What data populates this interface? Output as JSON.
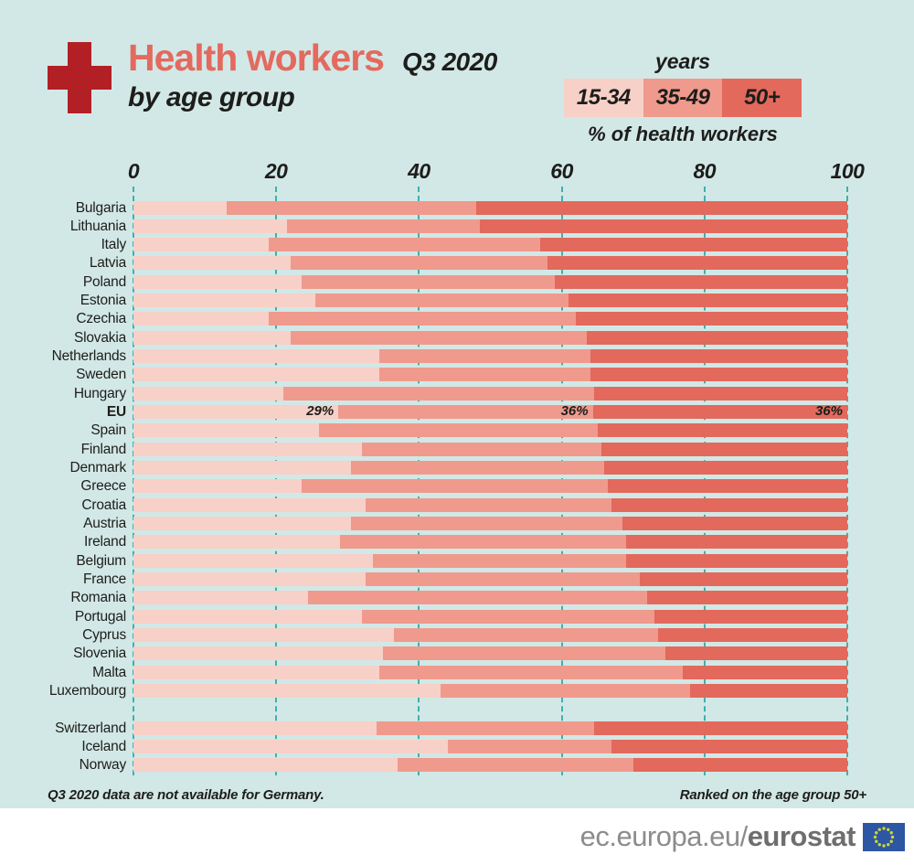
{
  "header": {
    "title": "Health workers",
    "period": "Q3 2020",
    "subtitle": "by age group"
  },
  "legend": {
    "title": "years",
    "unit_label": "% of health workers",
    "groups": [
      {
        "label": "15-34",
        "color": "#f7d0c8"
      },
      {
        "label": "35-49",
        "color": "#ef9a8d"
      },
      {
        "label": "50+",
        "color": "#e2695c"
      }
    ]
  },
  "axis": {
    "ticks": [
      "0",
      "20",
      "40",
      "60",
      "80",
      "100"
    ],
    "min": 0,
    "max": 100
  },
  "chart_data": {
    "type": "bar",
    "subtype": "horizontal-stacked",
    "series_names": [
      "15-34",
      "35-49",
      "50+"
    ],
    "unit": "% of health workers",
    "xlim": [
      0,
      100
    ],
    "grid": "vertical-dashed",
    "note": "stacked shares per country, ranked on age group 50+",
    "rows": [
      {
        "country": "Bulgaria",
        "values": [
          13,
          35,
          52
        ]
      },
      {
        "country": "Lithuania",
        "values": [
          21.5,
          27,
          51.5
        ]
      },
      {
        "country": "Italy",
        "values": [
          19,
          38,
          43
        ]
      },
      {
        "country": "Latvia",
        "values": [
          22,
          36,
          42
        ]
      },
      {
        "country": "Poland",
        "values": [
          23.5,
          35.5,
          41
        ]
      },
      {
        "country": "Estonia",
        "values": [
          25.5,
          35.5,
          39
        ]
      },
      {
        "country": "Czechia",
        "values": [
          19,
          43,
          38
        ]
      },
      {
        "country": "Slovakia",
        "values": [
          22,
          41.5,
          36.5
        ]
      },
      {
        "country": "Netherlands",
        "values": [
          34.5,
          29.5,
          36
        ]
      },
      {
        "country": "Sweden",
        "values": [
          34.5,
          29.5,
          36
        ]
      },
      {
        "country": "Hungary",
        "values": [
          21,
          43.5,
          35.5
        ]
      },
      {
        "country": "EU",
        "values": [
          29,
          36,
          36
        ],
        "bold": true,
        "labels": [
          "29%",
          "36%",
          "36%"
        ]
      },
      {
        "country": "Spain",
        "values": [
          26,
          39,
          35
        ]
      },
      {
        "country": "Finland",
        "values": [
          32,
          33.5,
          34.5
        ]
      },
      {
        "country": "Denmark",
        "values": [
          30.5,
          35.5,
          34
        ]
      },
      {
        "country": "Greece",
        "values": [
          23.5,
          43,
          33.5
        ]
      },
      {
        "country": "Croatia",
        "values": [
          32.5,
          34.5,
          33
        ]
      },
      {
        "country": "Austria",
        "values": [
          30.5,
          38,
          31.5
        ]
      },
      {
        "country": "Ireland",
        "values": [
          29,
          40,
          31
        ]
      },
      {
        "country": "Belgium",
        "values": [
          33.5,
          35.5,
          31
        ]
      },
      {
        "country": "France",
        "values": [
          32.5,
          38.5,
          29
        ]
      },
      {
        "country": "Romania",
        "values": [
          24.5,
          47.5,
          28
        ]
      },
      {
        "country": "Portugal",
        "values": [
          32,
          41,
          27
        ]
      },
      {
        "country": "Cyprus",
        "values": [
          36.5,
          37,
          26.5
        ]
      },
      {
        "country": "Slovenia",
        "values": [
          35,
          39.5,
          25.5
        ]
      },
      {
        "country": "Malta",
        "values": [
          34.5,
          42.5,
          23
        ]
      },
      {
        "country": "Luxembourg",
        "values": [
          43,
          35,
          22
        ]
      },
      {
        "country": "Switzerland",
        "values": [
          34,
          30.5,
          35.5
        ],
        "gap_before": true
      },
      {
        "country": "Iceland",
        "values": [
          44,
          23,
          33
        ]
      },
      {
        "country": "Norway",
        "values": [
          37,
          33,
          30
        ]
      }
    ]
  },
  "footnotes": {
    "left": "Q3 2020 data are not available for Germany.",
    "right": "Ranked on the age group 50+"
  },
  "footer": {
    "url_regular": "ec.europa.eu/",
    "url_bold": "eurostat"
  },
  "colors": {
    "background": "#d2e8e6",
    "title_accent": "#e4695e",
    "cross_red": "#b22025",
    "gridline_teal": "#3fb0ad",
    "text_dark": "#1d1d1b",
    "footer_gray": "#8c8c8c",
    "flag_blue": "#2d56a3",
    "flag_stars": "#c9d63b"
  }
}
